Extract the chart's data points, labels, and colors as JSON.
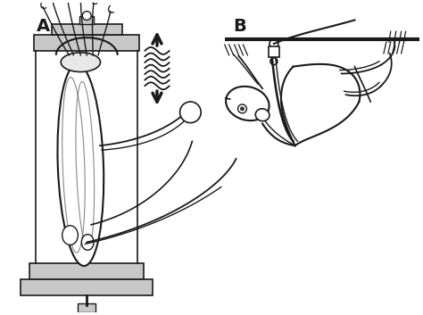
{
  "fig_width": 4.74,
  "fig_height": 3.53,
  "dpi": 100,
  "bg_color": "#ffffff",
  "line_color": "#1a1a1a",
  "gray_light": "#c8c8c8",
  "gray_med": "#aaaaaa",
  "gray_dark": "#888888",
  "label_A": "A",
  "label_B": "B",
  "label_fontsize": 14,
  "label_fontweight": "bold"
}
